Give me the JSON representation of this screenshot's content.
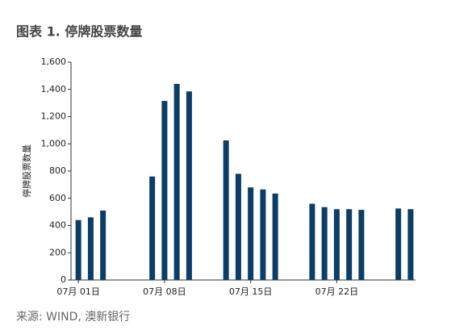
{
  "chart_data": {
    "type": "bar",
    "title": "图表 1. 停牌股票数量",
    "y_label": "停牌股票数量",
    "source": "来源: WIND, 澳新银行",
    "color": "#0b3d66",
    "categories": [
      "07月 01日",
      null,
      null,
      null,
      null,
      null,
      null,
      "07月 08日",
      null,
      null,
      null,
      null,
      null,
      null,
      "07月 15日",
      null,
      null,
      null,
      null,
      null,
      null,
      "07月 22日",
      null,
      null,
      null,
      null,
      null,
      null
    ],
    "values": [
      440,
      460,
      510,
      null,
      null,
      null,
      760,
      1315,
      1440,
      1385,
      null,
      null,
      1025,
      780,
      680,
      665,
      635,
      null,
      null,
      560,
      535,
      520,
      520,
      515,
      null,
      null,
      525,
      520
    ],
    "ylim": [
      0,
      1600
    ],
    "yticks": [
      0,
      200,
      400,
      600,
      800,
      {
        "value": 1000,
        "label": "1,000"
      },
      {
        "value": 1200,
        "label": "1,200"
      },
      {
        "value": 1400,
        "label": "1,400"
      },
      {
        "value": 1600,
        "label": "1,600"
      }
    ],
    "grid": false
  }
}
